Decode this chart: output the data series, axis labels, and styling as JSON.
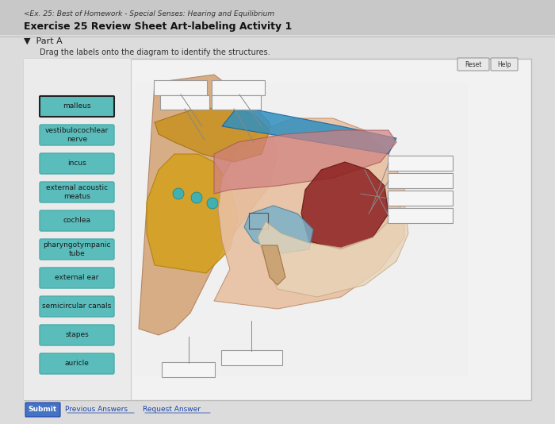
{
  "bg_color": "#d9d9d9",
  "page_bg": "#e8e8e8",
  "header_text": "<Ex. 25: Best of Homework - Special Senses: Hearing and Equilibrium",
  "title_text": "Exercise 25 Review Sheet Art-labeling Activity 1",
  "part_text": "Part A",
  "instruction_text": "Drag the labels onto the diagram to identify the structures.",
  "button_color": "#5bc8c8",
  "button_text_color": "#2a2a2a",
  "button_border_color": "#3a9a9a",
  "labels": [
    "malleus",
    "vestibulocochlear\nnerve",
    "incus",
    "external acoustic\nmeatus",
    "cochlea",
    "pharyngotympanic\ntube",
    "external ear",
    "semicircular canals",
    "stapes",
    "auricle"
  ],
  "label_box_color": "#5bbcbc",
  "main_panel_bg": "#f0f0f0",
  "main_panel_border": "#cccccc",
  "answer_box_color": "#e8e8e8",
  "answer_box_border": "#999999",
  "reset_button_color": "#e0e0e0",
  "help_button_color": "#e0e0e0",
  "submit_button_color": "#4472c4",
  "submit_text_color": "#ffffff"
}
